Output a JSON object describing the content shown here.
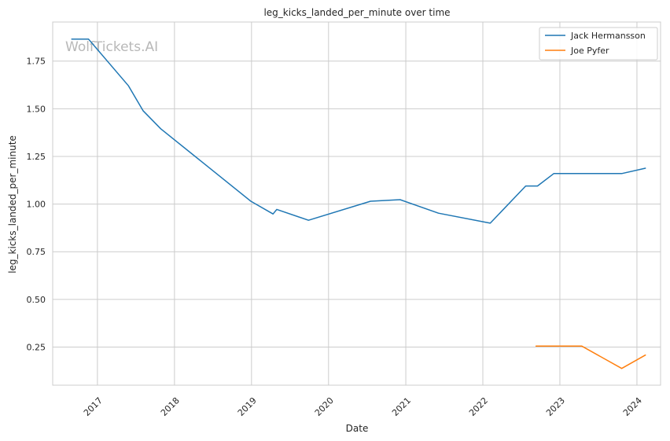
{
  "chart_data": {
    "type": "line",
    "title": "leg_kicks_landed_per_minute over time",
    "xlabel": "Date",
    "ylabel": "leg_kicks_landed_per_minute",
    "watermark": "WolfTickets.AI",
    "xlim": [
      "2016-06-03",
      "2024-04-22"
    ],
    "ylim": [
      0.05,
      1.955
    ],
    "x_ticks": [
      "2017-01-01",
      "2018-01-01",
      "2019-01-01",
      "2020-01-01",
      "2021-01-01",
      "2022-01-01",
      "2023-01-01",
      "2024-01-01"
    ],
    "x_tick_labels": [
      "2017",
      "2018",
      "2019",
      "2020",
      "2021",
      "2022",
      "2023",
      "2024"
    ],
    "y_ticks": [
      0.25,
      0.5,
      0.75,
      1.0,
      1.25,
      1.5,
      1.75
    ],
    "y_tick_labels": [
      "0.25",
      "0.50",
      "0.75",
      "1.00",
      "1.25",
      "1.50",
      "1.75"
    ],
    "grid": true,
    "legend_position": "top-right",
    "series": [
      {
        "name": "Jack Hermansson",
        "color": "#1f77b4",
        "points": [
          {
            "x": "2016-09-01",
            "y": 1.865
          },
          {
            "x": "2016-11-20",
            "y": 1.865
          },
          {
            "x": "2017-05-28",
            "y": 1.62
          },
          {
            "x": "2017-08-05",
            "y": 1.49
          },
          {
            "x": "2017-10-28",
            "y": 1.395
          },
          {
            "x": "2018-12-29",
            "y": 1.015
          },
          {
            "x": "2019-04-13",
            "y": 0.948
          },
          {
            "x": "2019-05-01",
            "y": 0.972
          },
          {
            "x": "2019-09-28",
            "y": 0.915
          },
          {
            "x": "2020-07-18",
            "y": 1.015
          },
          {
            "x": "2020-12-05",
            "y": 1.023
          },
          {
            "x": "2021-06-05",
            "y": 0.952
          },
          {
            "x": "2022-02-05",
            "y": 0.9
          },
          {
            "x": "2022-07-23",
            "y": 1.095
          },
          {
            "x": "2022-09-17",
            "y": 1.095
          },
          {
            "x": "2022-12-03",
            "y": 1.16
          },
          {
            "x": "2023-10-21",
            "y": 1.16
          },
          {
            "x": "2024-02-10",
            "y": 1.188
          }
        ]
      },
      {
        "name": "Joe Pyfer",
        "color": "#ff7f0e",
        "points": [
          {
            "x": "2022-09-10",
            "y": 0.255
          },
          {
            "x": "2023-04-15",
            "y": 0.255
          },
          {
            "x": "2023-10-21",
            "y": 0.138
          },
          {
            "x": "2024-02-10",
            "y": 0.208
          }
        ]
      }
    ]
  }
}
